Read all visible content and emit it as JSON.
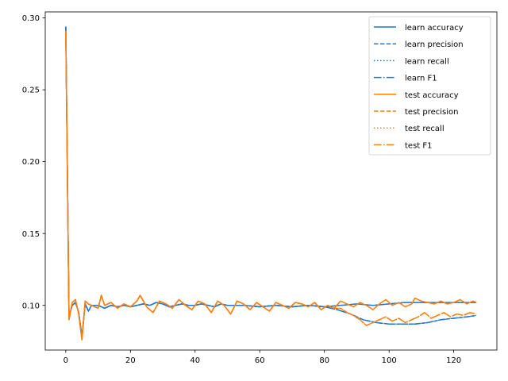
{
  "chart_data": {
    "type": "line",
    "title": "",
    "xlabel": "",
    "ylabel": "",
    "xlim": [
      -6.35,
      133.35
    ],
    "ylim": [
      0.0689,
      0.3042
    ],
    "xticks": [
      0,
      20,
      40,
      60,
      80,
      100,
      120
    ],
    "yticks": [
      0.1,
      0.15,
      0.2,
      0.25,
      0.3
    ],
    "ytick_labels": [
      "0.10",
      "0.15",
      "0.20",
      "0.25",
      "0.30"
    ],
    "grid": false,
    "legend_position": "top-right",
    "colors": {
      "learn": "#1f77d4",
      "test": "#ff7f0e"
    },
    "knots": {
      "learn": [
        [
          0,
          0.294
        ],
        [
          1,
          0.092
        ],
        [
          2,
          0.1
        ],
        [
          3,
          0.102
        ],
        [
          4,
          0.095
        ],
        [
          5,
          0.078
        ],
        [
          6,
          0.101
        ],
        [
          7,
          0.096
        ],
        [
          8,
          0.1
        ],
        [
          10,
          0.1
        ],
        [
          12,
          0.098
        ],
        [
          14,
          0.1
        ],
        [
          16,
          0.099
        ],
        [
          18,
          0.1
        ],
        [
          20,
          0.099
        ],
        [
          22,
          0.1
        ],
        [
          24,
          0.101
        ],
        [
          26,
          0.1
        ],
        [
          28,
          0.102
        ],
        [
          30,
          0.101
        ],
        [
          32,
          0.099
        ],
        [
          34,
          0.1
        ],
        [
          36,
          0.101
        ],
        [
          38,
          0.1
        ],
        [
          40,
          0.1
        ],
        [
          42,
          0.101
        ],
        [
          44,
          0.1
        ],
        [
          46,
          0.099
        ],
        [
          48,
          0.101
        ],
        [
          50,
          0.1
        ],
        [
          55,
          0.1
        ],
        [
          60,
          0.099
        ],
        [
          65,
          0.1
        ],
        [
          70,
          0.099
        ],
        [
          75,
          0.1
        ],
        [
          80,
          0.099
        ],
        [
          85,
          0.1
        ],
        [
          90,
          0.101
        ],
        [
          95,
          0.1
        ],
        [
          100,
          0.101
        ],
        [
          105,
          0.102
        ],
        [
          110,
          0.102
        ],
        [
          115,
          0.102
        ],
        [
          120,
          0.102
        ],
        [
          127,
          0.102
        ]
      ],
      "learn_low": [
        [
          0,
          0.294
        ],
        [
          1,
          0.092
        ],
        [
          2,
          0.1
        ],
        [
          3,
          0.102
        ],
        [
          4,
          0.095
        ],
        [
          5,
          0.078
        ],
        [
          6,
          0.101
        ],
        [
          7,
          0.096
        ],
        [
          8,
          0.1
        ],
        [
          10,
          0.1
        ],
        [
          12,
          0.098
        ],
        [
          14,
          0.1
        ],
        [
          16,
          0.099
        ],
        [
          18,
          0.1
        ],
        [
          20,
          0.099
        ],
        [
          22,
          0.1
        ],
        [
          24,
          0.101
        ],
        [
          26,
          0.1
        ],
        [
          28,
          0.102
        ],
        [
          30,
          0.101
        ],
        [
          32,
          0.099
        ],
        [
          34,
          0.1
        ],
        [
          36,
          0.101
        ],
        [
          38,
          0.1
        ],
        [
          40,
          0.1
        ],
        [
          42,
          0.101
        ],
        [
          44,
          0.1
        ],
        [
          46,
          0.099
        ],
        [
          48,
          0.101
        ],
        [
          50,
          0.1
        ],
        [
          55,
          0.1
        ],
        [
          60,
          0.099
        ],
        [
          65,
          0.1
        ],
        [
          70,
          0.099
        ],
        [
          75,
          0.1
        ],
        [
          80,
          0.099
        ],
        [
          84,
          0.097
        ],
        [
          88,
          0.094
        ],
        [
          92,
          0.09
        ],
        [
          96,
          0.088
        ],
        [
          100,
          0.087
        ],
        [
          104,
          0.087
        ],
        [
          108,
          0.087
        ],
        [
          112,
          0.088
        ],
        [
          116,
          0.09
        ],
        [
          120,
          0.091
        ],
        [
          124,
          0.092
        ],
        [
          127,
          0.093
        ]
      ],
      "test": [
        [
          0,
          0.291
        ],
        [
          1,
          0.09
        ],
        [
          2,
          0.102
        ],
        [
          3,
          0.104
        ],
        [
          4,
          0.094
        ],
        [
          5,
          0.076
        ],
        [
          6,
          0.103
        ],
        [
          7,
          0.101
        ],
        [
          8,
          0.1
        ],
        [
          10,
          0.098
        ],
        [
          11,
          0.107
        ],
        [
          12,
          0.1
        ],
        [
          14,
          0.102
        ],
        [
          16,
          0.098
        ],
        [
          18,
          0.101
        ],
        [
          20,
          0.099
        ],
        [
          22,
          0.103
        ],
        [
          23,
          0.107
        ],
        [
          25,
          0.099
        ],
        [
          27,
          0.095
        ],
        [
          29,
          0.103
        ],
        [
          31,
          0.101
        ],
        [
          33,
          0.098
        ],
        [
          35,
          0.104
        ],
        [
          37,
          0.1
        ],
        [
          39,
          0.097
        ],
        [
          41,
          0.103
        ],
        [
          43,
          0.101
        ],
        [
          45,
          0.095
        ],
        [
          47,
          0.103
        ],
        [
          49,
          0.1
        ],
        [
          51,
          0.094
        ],
        [
          53,
          0.103
        ],
        [
          55,
          0.101
        ],
        [
          57,
          0.097
        ],
        [
          59,
          0.102
        ],
        [
          61,
          0.099
        ],
        [
          63,
          0.096
        ],
        [
          65,
          0.102
        ],
        [
          67,
          0.1
        ],
        [
          69,
          0.098
        ],
        [
          71,
          0.102
        ],
        [
          73,
          0.101
        ],
        [
          75,
          0.099
        ],
        [
          77,
          0.102
        ],
        [
          79,
          0.097
        ],
        [
          81,
          0.1
        ],
        [
          83,
          0.098
        ],
        [
          85,
          0.103
        ],
        [
          87,
          0.101
        ],
        [
          89,
          0.099
        ],
        [
          91,
          0.102
        ],
        [
          93,
          0.1
        ],
        [
          95,
          0.097
        ],
        [
          97,
          0.101
        ],
        [
          99,
          0.104
        ],
        [
          101,
          0.1
        ],
        [
          103,
          0.102
        ],
        [
          105,
          0.099
        ],
        [
          107,
          0.101
        ],
        [
          108,
          0.105
        ],
        [
          110,
          0.103
        ],
        [
          112,
          0.102
        ],
        [
          114,
          0.101
        ],
        [
          116,
          0.103
        ],
        [
          118,
          0.101
        ],
        [
          120,
          0.102
        ],
        [
          122,
          0.104
        ],
        [
          124,
          0.101
        ],
        [
          126,
          0.103
        ],
        [
          127,
          0.102
        ]
      ],
      "test_low": [
        [
          0,
          0.291
        ],
        [
          1,
          0.09
        ],
        [
          2,
          0.102
        ],
        [
          3,
          0.104
        ],
        [
          4,
          0.094
        ],
        [
          5,
          0.076
        ],
        [
          6,
          0.103
        ],
        [
          7,
          0.101
        ],
        [
          8,
          0.1
        ],
        [
          10,
          0.098
        ],
        [
          11,
          0.107
        ],
        [
          12,
          0.1
        ],
        [
          14,
          0.102
        ],
        [
          16,
          0.098
        ],
        [
          18,
          0.101
        ],
        [
          20,
          0.099
        ],
        [
          22,
          0.103
        ],
        [
          23,
          0.107
        ],
        [
          25,
          0.099
        ],
        [
          27,
          0.095
        ],
        [
          29,
          0.103
        ],
        [
          31,
          0.101
        ],
        [
          33,
          0.098
        ],
        [
          35,
          0.104
        ],
        [
          37,
          0.1
        ],
        [
          39,
          0.097
        ],
        [
          41,
          0.103
        ],
        [
          43,
          0.101
        ],
        [
          45,
          0.095
        ],
        [
          47,
          0.103
        ],
        [
          49,
          0.1
        ],
        [
          51,
          0.094
        ],
        [
          53,
          0.103
        ],
        [
          55,
          0.101
        ],
        [
          57,
          0.097
        ],
        [
          59,
          0.102
        ],
        [
          61,
          0.099
        ],
        [
          63,
          0.096
        ],
        [
          65,
          0.102
        ],
        [
          67,
          0.1
        ],
        [
          69,
          0.098
        ],
        [
          71,
          0.102
        ],
        [
          73,
          0.101
        ],
        [
          75,
          0.099
        ],
        [
          77,
          0.102
        ],
        [
          79,
          0.097
        ],
        [
          81,
          0.1
        ],
        [
          83,
          0.098
        ],
        [
          85,
          0.098
        ],
        [
          87,
          0.095
        ],
        [
          89,
          0.093
        ],
        [
          91,
          0.09
        ],
        [
          93,
          0.086
        ],
        [
          95,
          0.088
        ],
        [
          97,
          0.09
        ],
        [
          99,
          0.092
        ],
        [
          101,
          0.089
        ],
        [
          103,
          0.091
        ],
        [
          105,
          0.088
        ],
        [
          107,
          0.09
        ],
        [
          109,
          0.092
        ],
        [
          111,
          0.095
        ],
        [
          113,
          0.091
        ],
        [
          115,
          0.093
        ],
        [
          117,
          0.095
        ],
        [
          119,
          0.092
        ],
        [
          121,
          0.094
        ],
        [
          123,
          0.093
        ],
        [
          125,
          0.095
        ],
        [
          127,
          0.094
        ]
      ]
    },
    "series": [
      {
        "name": "learn accuracy",
        "color": "#1f77d4",
        "dash": "solid",
        "source": "learn"
      },
      {
        "name": "learn precision",
        "color": "#1f77d4",
        "dash": "dashed",
        "source": "learn_low"
      },
      {
        "name": "learn recall",
        "color": "#1f77d4",
        "dash": "dotted",
        "source": "learn"
      },
      {
        "name": "learn F1",
        "color": "#1f77d4",
        "dash": "dashdot",
        "source": "learn_low"
      },
      {
        "name": "test accuracy",
        "color": "#ff7f0e",
        "dash": "solid",
        "source": "test"
      },
      {
        "name": "test precision",
        "color": "#ff7f0e",
        "dash": "dashed",
        "source": "test_low"
      },
      {
        "name": "test recall",
        "color": "#ff7f0e",
        "dash": "dotted",
        "source": "test"
      },
      {
        "name": "test F1",
        "color": "#ff7f0e",
        "dash": "dashdot",
        "source": "test_low"
      }
    ]
  }
}
